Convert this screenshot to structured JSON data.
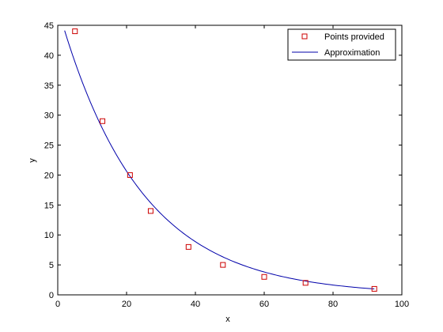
{
  "chart_data": {
    "type": "scatter",
    "xlabel": "x",
    "ylabel": "y",
    "xlim": [
      0,
      100
    ],
    "ylim": [
      0,
      45
    ],
    "xticks": [
      0,
      20,
      40,
      60,
      80,
      100
    ],
    "yticks": [
      0,
      5,
      10,
      15,
      20,
      25,
      30,
      35,
      40,
      45
    ],
    "grid": false,
    "legend_position": "top-right",
    "series": [
      {
        "name": "Points provided",
        "kind": "markers",
        "marker": "square",
        "color": "#cc0000",
        "x": [
          5,
          13,
          21,
          27,
          38,
          48,
          60,
          72,
          92
        ],
        "y": [
          44,
          29,
          20,
          14,
          8,
          5,
          3,
          2,
          1
        ]
      },
      {
        "name": "Approximation",
        "kind": "line",
        "color": "#0000aa",
        "model": "y = a * exp(b * x)",
        "params": {
          "a": 48.0,
          "b": -0.0422
        },
        "x_range": [
          2,
          92
        ]
      }
    ]
  }
}
